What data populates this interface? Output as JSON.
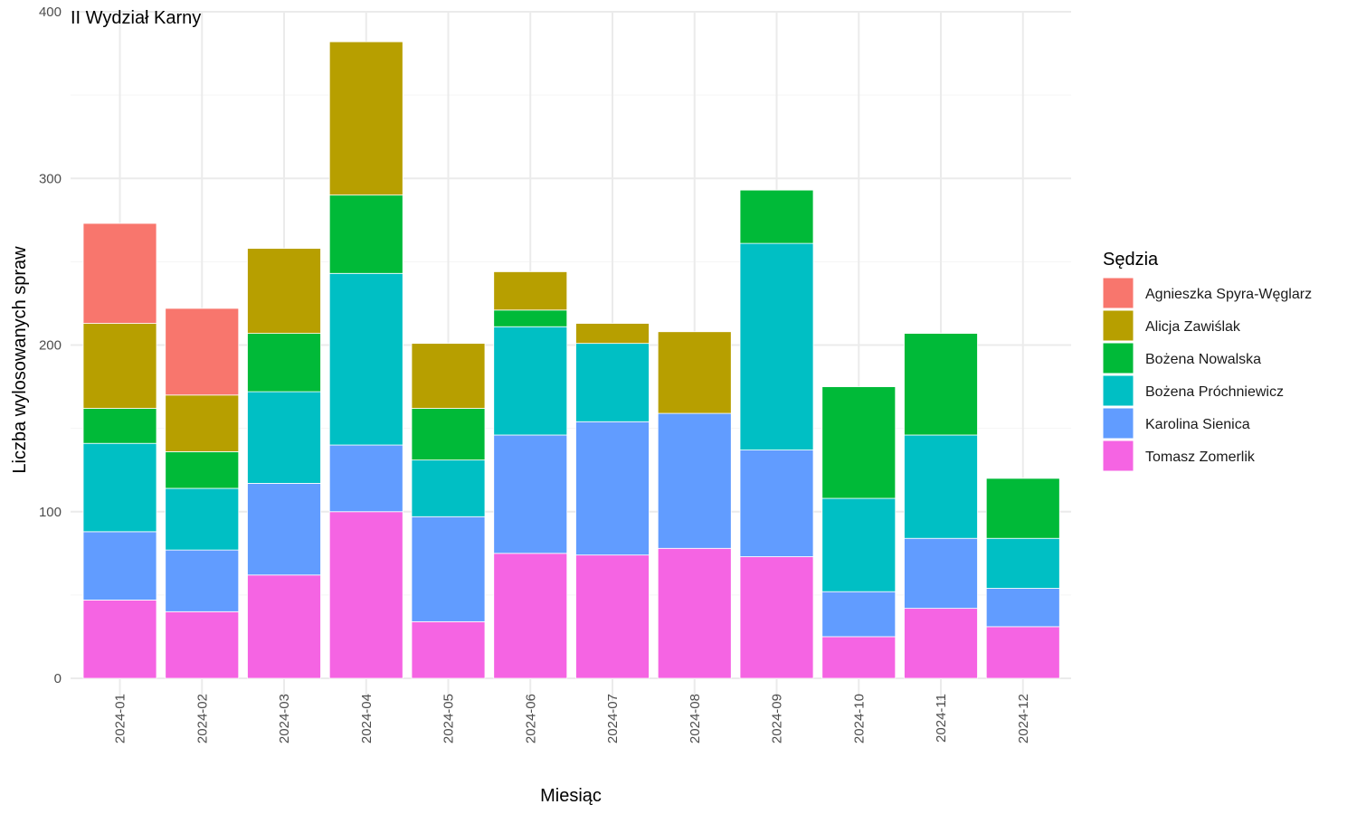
{
  "chart_data": {
    "type": "bar",
    "stacked": true,
    "title": "II Wydział Karny",
    "xlabel": "Miesiąc",
    "ylabel": "Liczba wylosowanych spraw",
    "ylim": [
      0,
      400
    ],
    "yticks": [
      0,
      100,
      200,
      300,
      400
    ],
    "grid": true,
    "legend_title": "Sędzia",
    "legend_position": "right",
    "categories": [
      "2024-01",
      "2024-02",
      "2024-03",
      "2024-04",
      "2024-05",
      "2024-06",
      "2024-07",
      "2024-08",
      "2024-09",
      "2024-10",
      "2024-11",
      "2024-12"
    ],
    "series": [
      {
        "name": "Agnieszka Spyra-Węglarz",
        "color": "#F8766D",
        "values": [
          60,
          52,
          0,
          0,
          0,
          0,
          0,
          0,
          0,
          0,
          0,
          0
        ]
      },
      {
        "name": "Alicja Zawiślak",
        "color": "#B79F00",
        "values": [
          51,
          34,
          51,
          92,
          39,
          23,
          12,
          49,
          0,
          0,
          0,
          0
        ]
      },
      {
        "name": "Bożena Nowalska",
        "color": "#00BA38",
        "values": [
          21,
          22,
          35,
          47,
          31,
          10,
          0,
          0,
          32,
          67,
          61,
          36
        ]
      },
      {
        "name": "Bożena Próchniewicz",
        "color": "#00BFC4",
        "values": [
          53,
          37,
          55,
          103,
          34,
          65,
          47,
          0,
          124,
          56,
          62,
          30
        ]
      },
      {
        "name": "Karolina Sienica",
        "color": "#619CFF",
        "values": [
          41,
          37,
          55,
          40,
          63,
          71,
          80,
          81,
          64,
          27,
          42,
          23
        ]
      },
      {
        "name": "Tomasz Zomerlik",
        "color": "#F564E3",
        "values": [
          47,
          40,
          62,
          100,
          34,
          75,
          74,
          78,
          73,
          25,
          42,
          31
        ]
      }
    ]
  }
}
